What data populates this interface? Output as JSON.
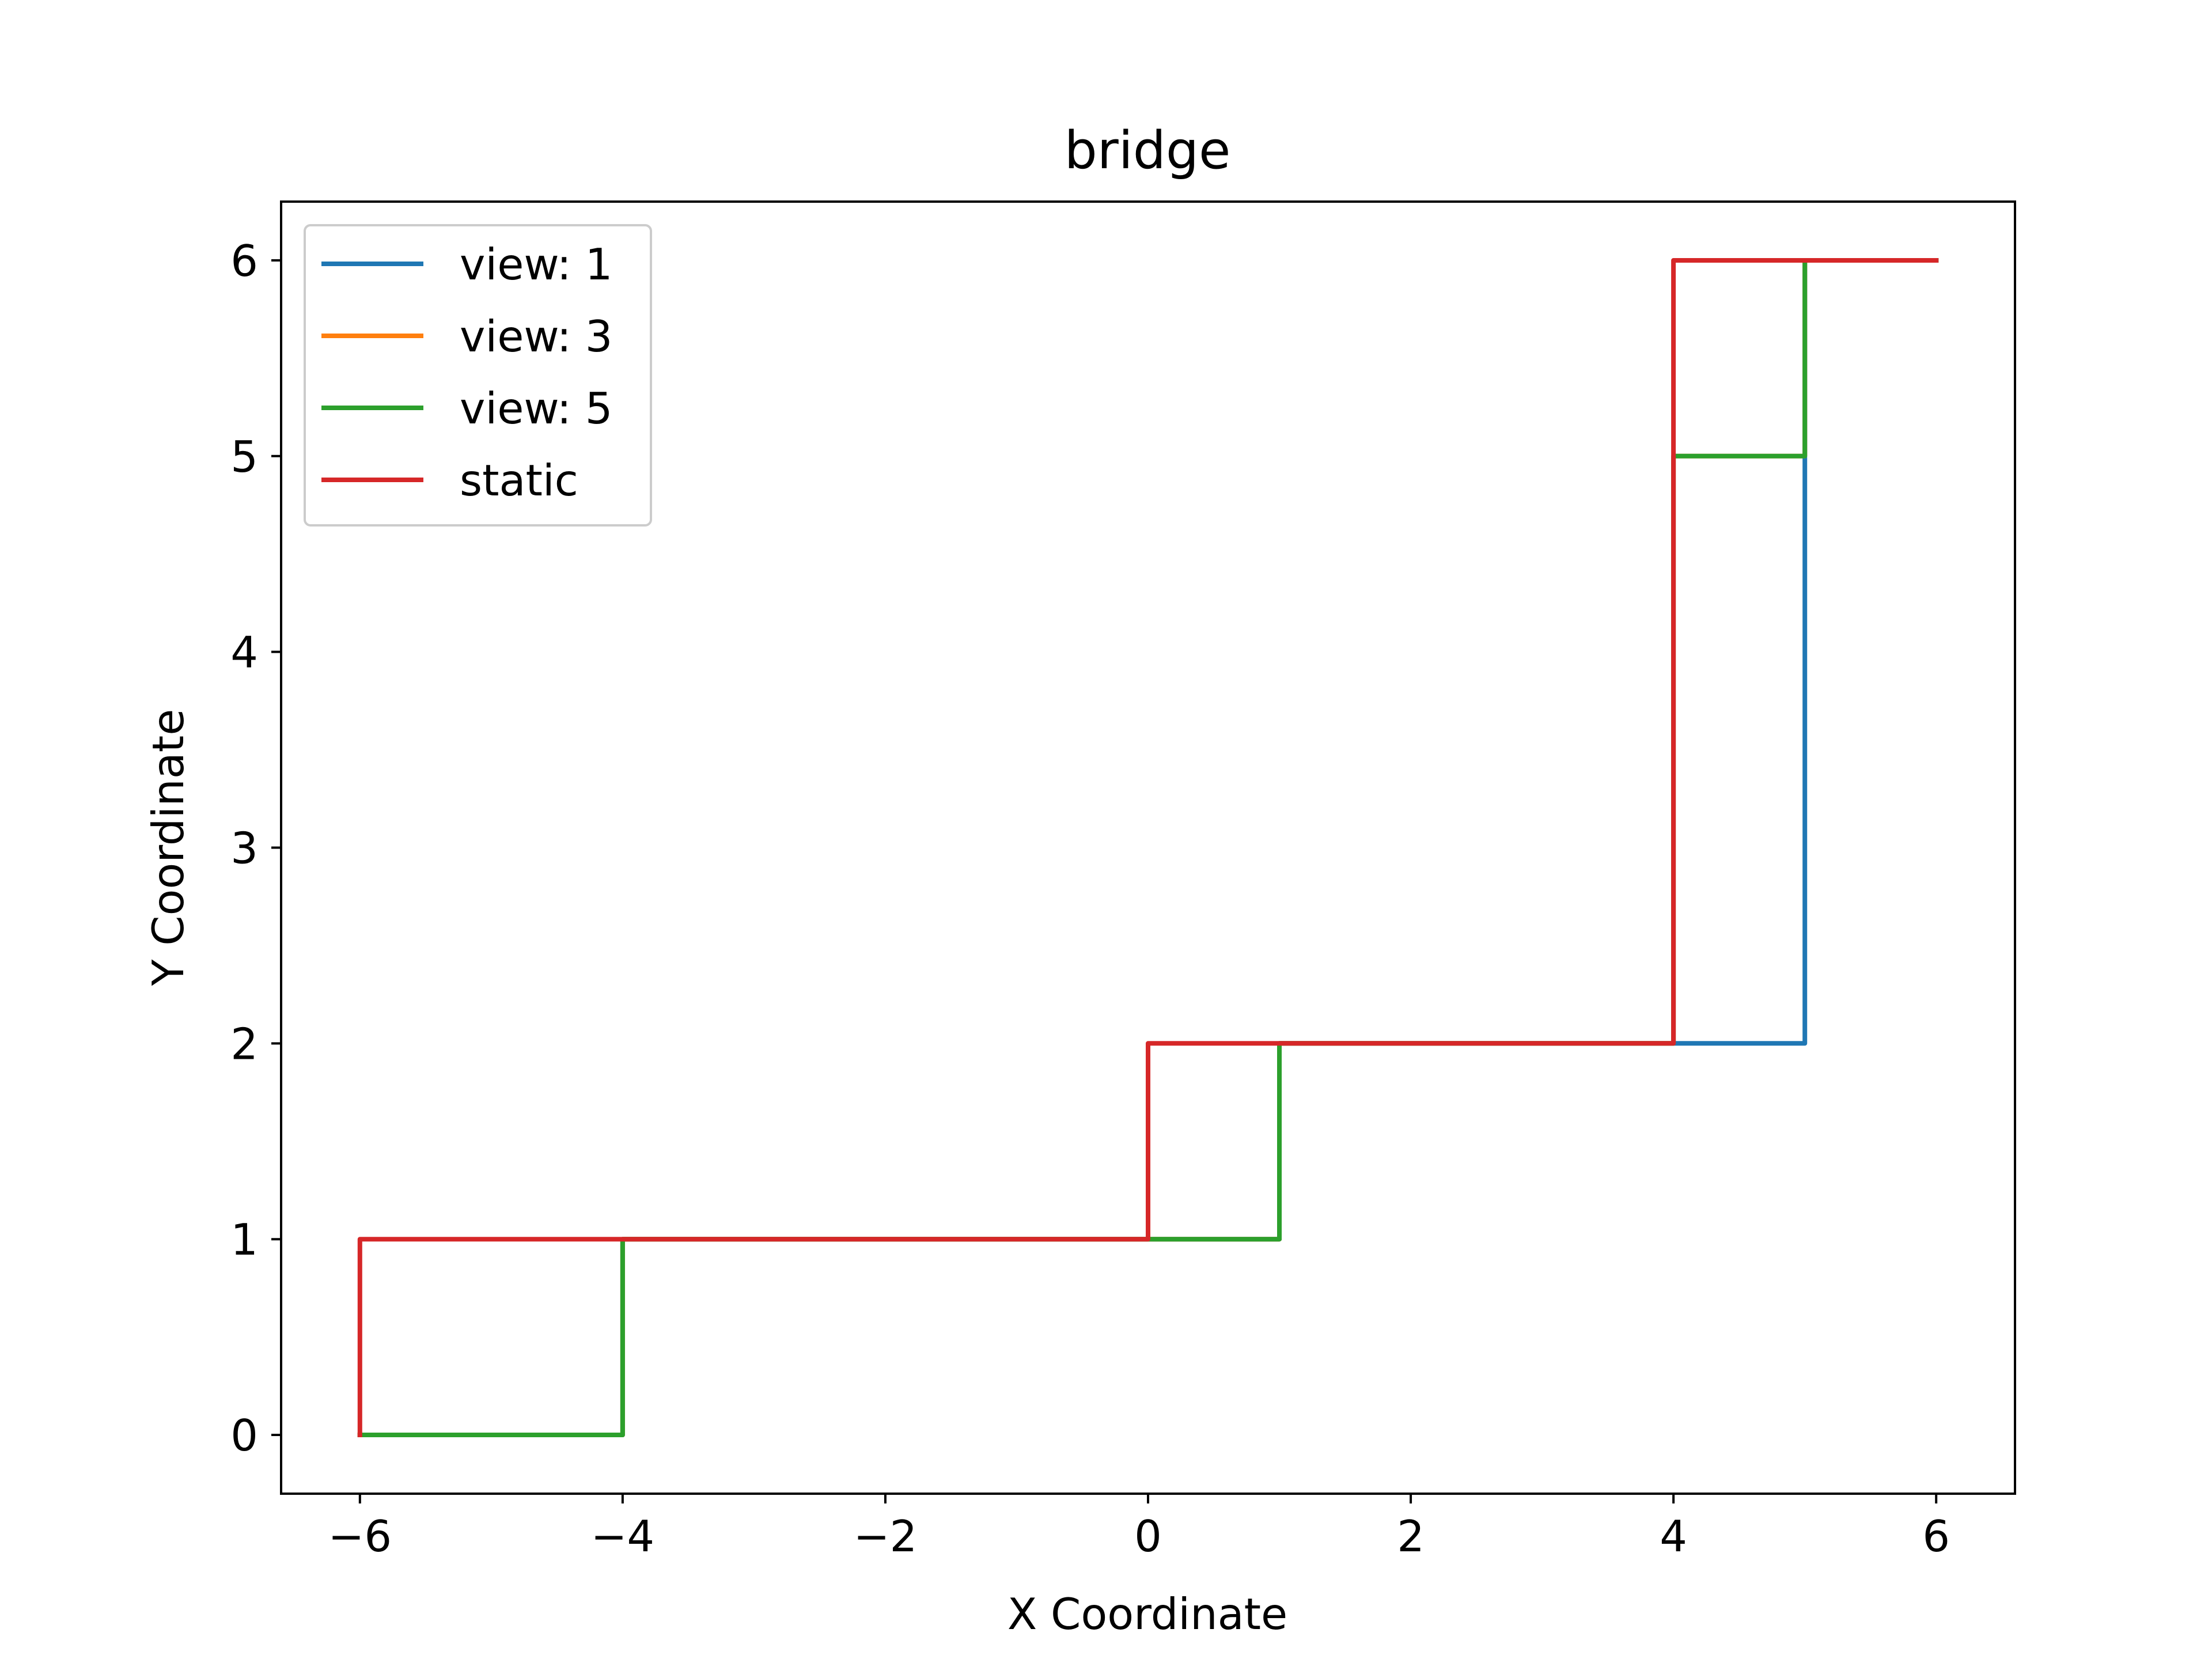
{
  "chart_data": {
    "type": "line",
    "title": "bridge",
    "xlabel": "X Coordinate",
    "ylabel": "Y Coordinate",
    "xlim": [
      -6.6,
      6.6
    ],
    "ylim": [
      -0.3,
      6.3
    ],
    "xticks": [
      -6,
      -4,
      -2,
      0,
      2,
      4,
      6
    ],
    "xtick_labels": [
      "−6",
      "−4",
      "−2",
      "0",
      "2",
      "4",
      "6"
    ],
    "yticks": [
      0,
      1,
      2,
      3,
      4,
      5,
      6
    ],
    "ytick_labels": [
      "0",
      "1",
      "2",
      "3",
      "4",
      "5",
      "6"
    ],
    "grid": false,
    "legend_position": "top-left",
    "series": [
      {
        "name": "view: 1",
        "color": "#1f77b4",
        "points": [
          [
            -6,
            0
          ],
          [
            -4,
            0
          ],
          [
            -4,
            1
          ],
          [
            0,
            1
          ],
          [
            1,
            1
          ],
          [
            1,
            2
          ],
          [
            4,
            2
          ],
          [
            5,
            2
          ],
          [
            5,
            5
          ],
          [
            5,
            6
          ],
          [
            6,
            6
          ]
        ]
      },
      {
        "name": "view: 3",
        "color": "#ff7f0e",
        "points": [
          [
            -6,
            0
          ],
          [
            -4,
            0
          ],
          [
            -4,
            1
          ],
          [
            0,
            1
          ],
          [
            1,
            1
          ],
          [
            1,
            2
          ],
          [
            4,
            2
          ],
          [
            4,
            5
          ],
          [
            5,
            5
          ],
          [
            5,
            6
          ],
          [
            6,
            6
          ]
        ]
      },
      {
        "name": "view: 5",
        "color": "#2ca02c",
        "points": [
          [
            -6,
            0
          ],
          [
            -4,
            0
          ],
          [
            -4,
            1
          ],
          [
            0,
            1
          ],
          [
            1,
            1
          ],
          [
            1,
            2
          ],
          [
            4,
            2
          ],
          [
            4,
            5
          ],
          [
            5,
            5
          ],
          [
            5,
            6
          ],
          [
            6,
            6
          ]
        ]
      },
      {
        "name": "static",
        "color": "#d62728",
        "points": [
          [
            -6,
            0
          ],
          [
            -6,
            1
          ],
          [
            0,
            1
          ],
          [
            0,
            2
          ],
          [
            4,
            2
          ],
          [
            4,
            6
          ],
          [
            6,
            6
          ]
        ]
      }
    ]
  }
}
